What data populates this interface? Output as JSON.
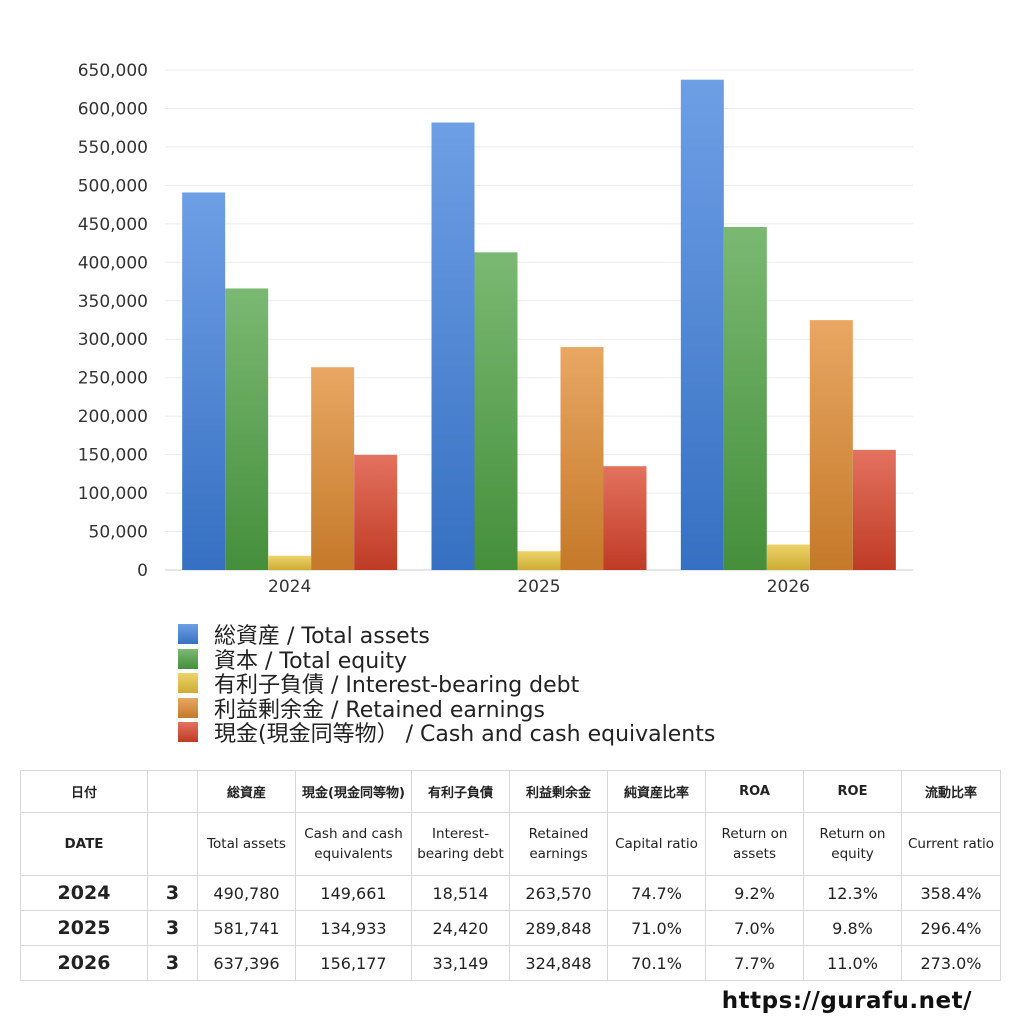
{
  "chart_data": {
    "type": "bar",
    "categories": [
      "2024",
      "2025",
      "2026"
    ],
    "series": [
      {
        "name": "総資産 / Total assets",
        "values": [
          490780,
          581741,
          637396
        ],
        "color": "#3d7fdc"
      },
      {
        "name": "資本 / Total equity",
        "values": [
          366000,
          413000,
          446000
        ],
        "color": "#4ea243"
      },
      {
        "name": "有利子負債 / Interest-bearing debt",
        "values": [
          18514,
          24420,
          33149
        ],
        "color": "#e8c43a"
      },
      {
        "name": "利益剰余金 / Retained earnings",
        "values": [
          263570,
          289848,
          324848
        ],
        "color": "#e0892f"
      },
      {
        "name": "現金(現金同等物）  /  Cash and cash equivalents",
        "values": [
          149661,
          134933,
          156177
        ],
        "color": "#d9432a"
      }
    ],
    "ylim": [
      0,
      650000
    ],
    "yticks": [
      0,
      50000,
      100000,
      150000,
      200000,
      250000,
      300000,
      350000,
      400000,
      450000,
      500000,
      550000,
      600000,
      650000
    ],
    "grid": true,
    "legend_position": "bottom"
  },
  "table": {
    "header_ja": [
      "日付",
      "",
      "総資産",
      "現金(現金同等物)",
      "有利子負債",
      "利益剰余金",
      "純資産比率",
      "ROA",
      "ROE",
      "流動比率"
    ],
    "header_en": [
      "DATE",
      "",
      "Total assets",
      "Cash and cash equivalents",
      "Interest-bearing debt",
      "Retained earnings",
      "Capital ratio",
      "Return on assets",
      "Return on equity",
      "Current ratio"
    ],
    "rows": [
      {
        "year": "2024",
        "month": "3",
        "values": [
          "490,780",
          "149,661",
          "18,514",
          "263,570",
          "74.7%",
          "9.2%",
          "12.3%",
          "358.4%"
        ]
      },
      {
        "year": "2025",
        "month": "3",
        "values": [
          "581,741",
          "134,933",
          "24,420",
          "289,848",
          "71.0%",
          "7.0%",
          "9.8%",
          "296.4%"
        ]
      },
      {
        "year": "2026",
        "month": "3",
        "values": [
          "637,396",
          "156,177",
          "33,149",
          "324,848",
          "70.1%",
          "7.7%",
          "11.0%",
          "273.0%"
        ]
      }
    ]
  },
  "footer": {
    "url": "https://gurafu.net/"
  }
}
